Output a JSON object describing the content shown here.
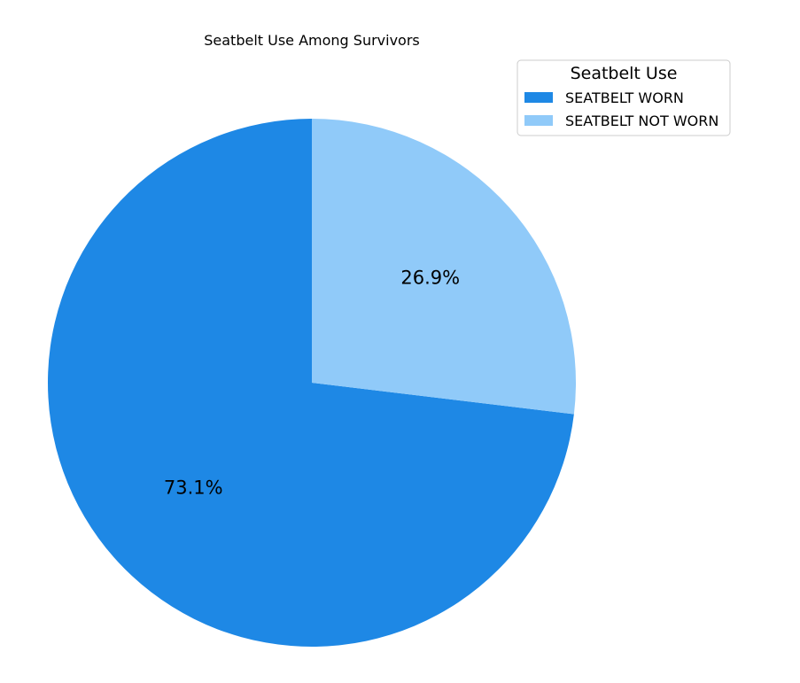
{
  "chart_data": {
    "type": "pie",
    "title": "Seatbelt Use Among Survivors",
    "categories": [
      "SEATBELT WORN",
      "SEATBELT NOT WORN"
    ],
    "values": [
      73.1,
      26.9
    ],
    "labels": [
      "73.1%",
      "26.9%"
    ],
    "colors": [
      "#1e88e5",
      "#90caf9"
    ],
    "start_angle_deg": 90,
    "direction": "counterclockwise",
    "legend": {
      "title": "Seatbelt Use",
      "placement": "top-right",
      "entries": [
        "SEATBELT WORN",
        "SEATBELT NOT WORN"
      ]
    }
  }
}
